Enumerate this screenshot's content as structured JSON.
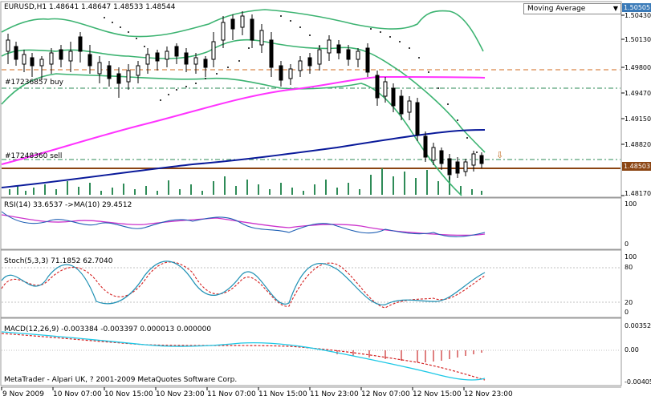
{
  "main": {
    "symbol_info": "EURUSD,H1  1.48641 1.48647 1.48533 1.48544",
    "buy_label": "#17236857 buy",
    "sell_label": "#17248360 sell",
    "indicator_dropdown": "Moving Average",
    "dropdown_arrow": "▼",
    "price_axis": [
      "1.50430",
      "1.50130",
      "1.49800",
      "1.49470",
      "1.49150",
      "1.48820",
      "1.48170"
    ],
    "top_marker": "1.50505",
    "current_marker": "1.48503",
    "current_marker_color": "#8B4513",
    "top_marker_color": "#3a7ab8",
    "arrow_marker": "⇩"
  },
  "rsi": {
    "label": "RSI(14) 33.6537   ->MA(10) 29.4512",
    "axis": [
      "100",
      "0"
    ]
  },
  "stoch": {
    "label": "Stoch(5,3,3) 71.1852 62.7040",
    "axis": [
      "100",
      "80",
      "20",
      "0"
    ]
  },
  "macd": {
    "label": "MACD(12,26,9) -0.003384 -0.003397 0.000013 0.000000",
    "axis": [
      "0.00352",
      "0.00",
      "-0.00405"
    ],
    "copyright": "MetaTrader - Alpari UK, ? 2001-2009 MetaQuotes Software Corp."
  },
  "time_axis": [
    "9 Nov 2009",
    "10 Nov 07:00",
    "10 Nov 15:00",
    "10 Nov 23:00",
    "11 Nov 07:00",
    "11 Nov 15:00",
    "11 Nov 23:00",
    "12 Nov 07:00",
    "12 Nov 15:00",
    "12 Nov 23:00"
  ]
}
